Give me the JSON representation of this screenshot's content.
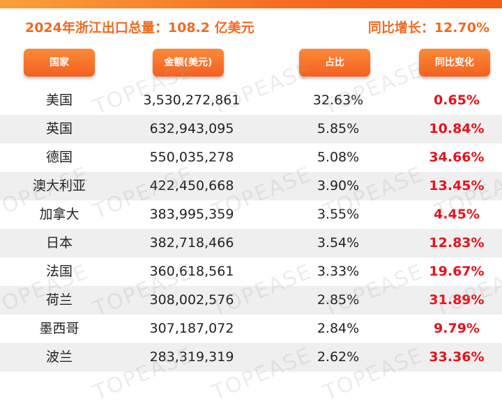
{
  "header": {
    "title_left": "2024年浙江出口总量：108.2 亿美元",
    "title_right": "同比增长：12.70%"
  },
  "columns": [
    "国家",
    "金额(美元)",
    "占比",
    "同比变化"
  ],
  "watermark": "TOPEASE",
  "colors": {
    "accent_orange": "#f46020",
    "change_red": "#e8111b",
    "row_shade": "#efefef"
  },
  "chart_data": {
    "type": "table",
    "title": "2024年浙江出口总量：108.2 亿美元",
    "subtitle": "同比增长：12.70%",
    "columns": [
      "国家",
      "金额(美元)",
      "占比",
      "同比变化"
    ],
    "rows": [
      {
        "country": "美国",
        "amount": "3,530,272,861",
        "share": "32.63%",
        "change": "0.65%"
      },
      {
        "country": "英国",
        "amount": "632,943,095",
        "share": "5.85%",
        "change": "10.84%"
      },
      {
        "country": "德国",
        "amount": "550,035,278",
        "share": "5.08%",
        "change": "34.66%"
      },
      {
        "country": "澳大利亚",
        "amount": "422,450,668",
        "share": "3.90%",
        "change": "13.45%"
      },
      {
        "country": "加拿大",
        "amount": "383,995,359",
        "share": "3.55%",
        "change": "4.45%"
      },
      {
        "country": "日本",
        "amount": "382,718,466",
        "share": "3.54%",
        "change": "12.83%"
      },
      {
        "country": "法国",
        "amount": "360,618,561",
        "share": "3.33%",
        "change": "19.67%"
      },
      {
        "country": "荷兰",
        "amount": "308,002,576",
        "share": "2.85%",
        "change": "31.89%"
      },
      {
        "country": "墨西哥",
        "amount": "307,187,072",
        "share": "2.84%",
        "change": "9.79%"
      },
      {
        "country": "波兰",
        "amount": "283,319,319",
        "share": "2.62%",
        "change": "33.36%"
      }
    ]
  }
}
